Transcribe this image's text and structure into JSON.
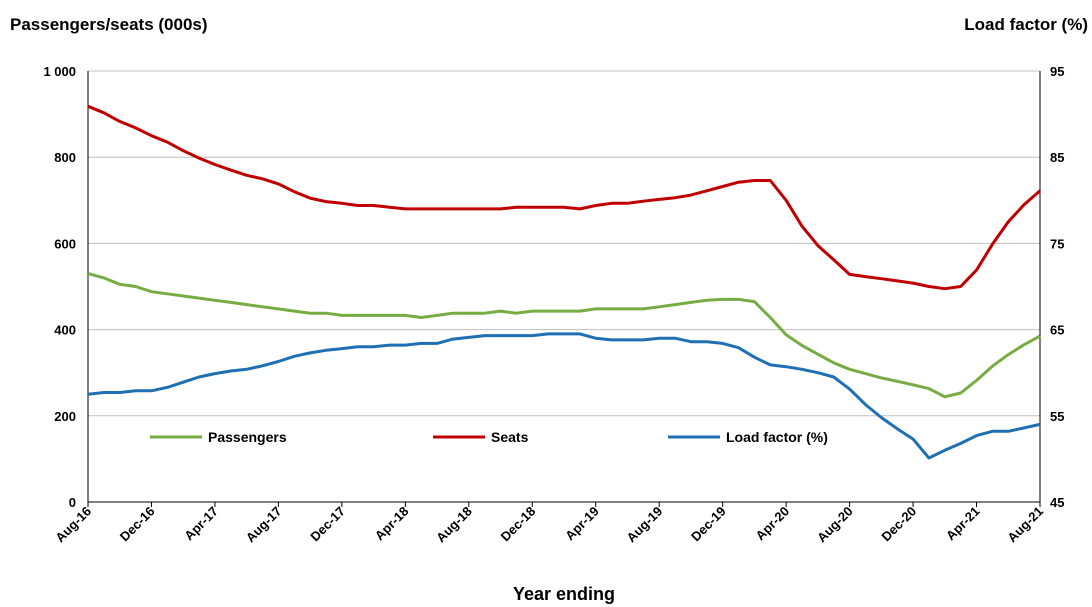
{
  "chart_data": {
    "type": "line",
    "left_axis_title": "Passengers/seats (000s)",
    "right_axis_title": "Load factor (%)",
    "xlabel": "Year ending",
    "left_ylim": [
      0,
      1000
    ],
    "left_ticks": [
      "0",
      "200",
      "400",
      "600",
      "800",
      "1 000"
    ],
    "right_ylim": [
      45,
      95
    ],
    "right_ticks": [
      "45",
      "55",
      "65",
      "75",
      "85",
      "95"
    ],
    "x_tick_labels": [
      "Aug-16",
      "Dec-16",
      "Apr-17",
      "Aug-17",
      "Dec-17",
      "Apr-18",
      "Aug-18",
      "Dec-18",
      "Apr-19",
      "Aug-19",
      "Dec-19",
      "Apr-20",
      "Aug-20",
      "Dec-20",
      "Apr-21",
      "Aug-21"
    ],
    "x": [
      "Aug-16",
      "Sep-16",
      "Oct-16",
      "Nov-16",
      "Dec-16",
      "Jan-17",
      "Feb-17",
      "Mar-17",
      "Apr-17",
      "May-17",
      "Jun-17",
      "Jul-17",
      "Aug-17",
      "Sep-17",
      "Oct-17",
      "Nov-17",
      "Dec-17",
      "Jan-18",
      "Feb-18",
      "Mar-18",
      "Apr-18",
      "May-18",
      "Jun-18",
      "Jul-18",
      "Aug-18",
      "Sep-18",
      "Oct-18",
      "Nov-18",
      "Dec-18",
      "Jan-19",
      "Feb-19",
      "Mar-19",
      "Apr-19",
      "May-19",
      "Jun-19",
      "Jul-19",
      "Aug-19",
      "Sep-19",
      "Oct-19",
      "Nov-19",
      "Dec-19",
      "Jan-20",
      "Feb-20",
      "Mar-20",
      "Apr-20",
      "May-20",
      "Jun-20",
      "Jul-20",
      "Aug-20",
      "Sep-20",
      "Oct-20",
      "Nov-20",
      "Dec-20",
      "Jan-21",
      "Feb-21",
      "Mar-21",
      "Apr-21",
      "May-21",
      "Jun-21",
      "Jul-21",
      "Aug-21"
    ],
    "series": [
      {
        "name": "Passengers",
        "axis": "left",
        "color": "#77ac43",
        "values": [
          530,
          520,
          505,
          500,
          488,
          483,
          478,
          473,
          468,
          463,
          458,
          453,
          448,
          443,
          438,
          438,
          433,
          433,
          433,
          433,
          433,
          428,
          433,
          438,
          438,
          438,
          443,
          438,
          443,
          443,
          443,
          443,
          448,
          448,
          448,
          448,
          453,
          458,
          463,
          468,
          470,
          470,
          465,
          428,
          388,
          363,
          343,
          323,
          308,
          298,
          288,
          280,
          272,
          263,
          244,
          253,
          282,
          315,
          342,
          365,
          385
        ]
      },
      {
        "name": "Seats",
        "axis": "left",
        "color": "#c00000",
        "values": [
          918,
          903,
          883,
          868,
          850,
          835,
          815,
          798,
          783,
          770,
          758,
          750,
          738,
          720,
          705,
          697,
          693,
          688,
          688,
          684,
          680,
          680,
          680,
          680,
          680,
          680,
          680,
          684,
          684,
          684,
          684,
          680,
          688,
          693,
          693,
          698,
          702,
          706,
          712,
          722,
          732,
          742,
          746,
          746,
          700,
          640,
          595,
          562,
          528,
          523,
          518,
          513,
          508,
          500,
          495,
          500,
          538,
          598,
          650,
          690,
          722
        ]
      },
      {
        "name": "Load factor (%)",
        "axis": "right",
        "color": "#1f6fb4",
        "values": [
          57.5,
          57.7,
          57.7,
          57.9,
          57.9,
          58.3,
          58.9,
          59.5,
          59.9,
          60.2,
          60.4,
          60.8,
          61.3,
          61.9,
          62.3,
          62.6,
          62.8,
          63.0,
          63.0,
          63.2,
          63.2,
          63.4,
          63.4,
          63.9,
          64.1,
          64.3,
          64.3,
          64.3,
          64.3,
          64.5,
          64.5,
          64.5,
          64.0,
          63.8,
          63.8,
          63.8,
          64.0,
          64.0,
          63.6,
          63.6,
          63.4,
          62.9,
          61.8,
          60.9,
          60.7,
          60.4,
          60.0,
          59.5,
          58.1,
          56.3,
          54.8,
          53.5,
          52.3,
          50.1,
          51.0,
          51.8,
          52.7,
          53.2,
          53.2,
          53.6,
          54.0
        ]
      }
    ],
    "legend_position": "inside-bottom",
    "grid": "horizontal"
  }
}
